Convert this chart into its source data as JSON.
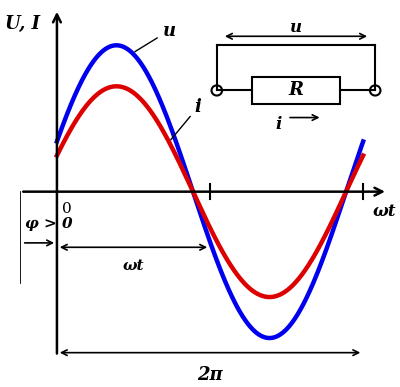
{
  "u_amplitude": 1.0,
  "i_amplitude": 0.72,
  "u_color": "#0000ee",
  "i_color": "#dd0000",
  "bg_color": "#ffffff",
  "x_min": -0.75,
  "x_max": 7.0,
  "y_min": -1.25,
  "y_max": 1.3,
  "linewidth": 3.2,
  "ylabel": "U, I",
  "xlabel_wt": "ωt",
  "label_u": "u",
  "label_i": "i",
  "phi_label": "φ > 0",
  "wt_label": "ωt",
  "twopi_label": "2π",
  "zero_label": "0",
  "R_label": "R",
  "circuit_u_label": "u",
  "circuit_i_label": "i",
  "phase_shift": 0.35,
  "font_size_main": 13,
  "font_size_label": 12,
  "axis_lw": 1.8
}
